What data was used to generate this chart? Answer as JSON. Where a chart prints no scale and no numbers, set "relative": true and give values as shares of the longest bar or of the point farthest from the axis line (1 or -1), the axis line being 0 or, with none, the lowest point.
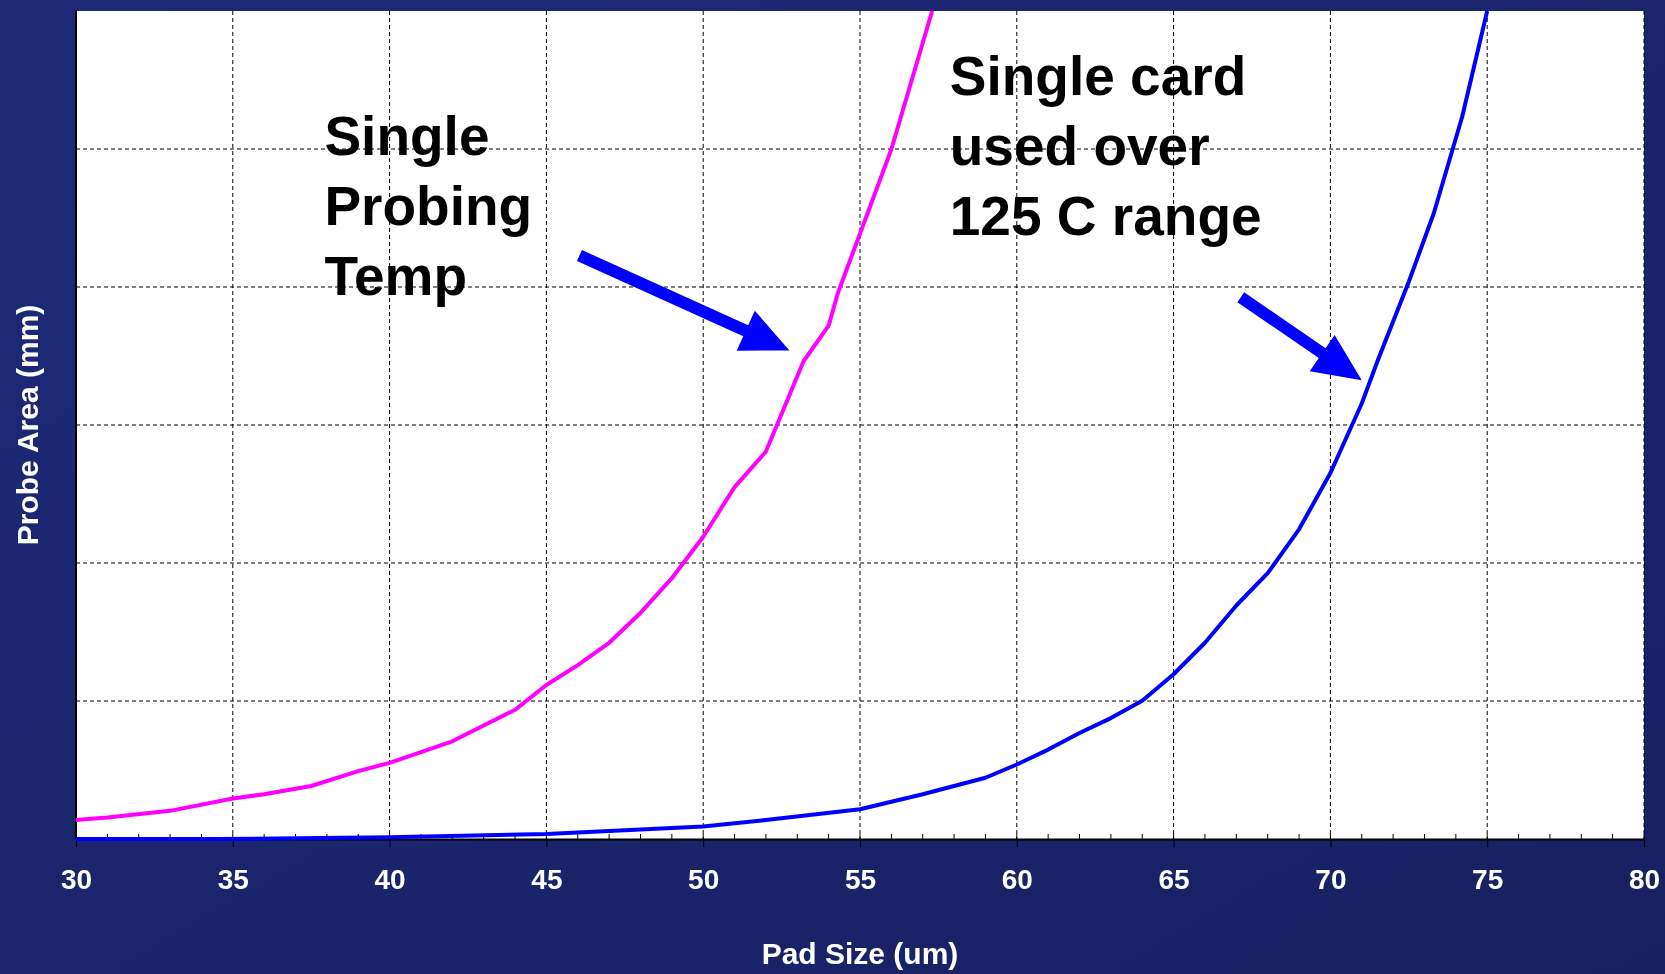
{
  "chart_data": {
    "type": "line",
    "relative": true,
    "xlabel": "Pad Size (um)",
    "ylabel": "Probe Area (mm)",
    "xlim": [
      30,
      80
    ],
    "xticks": [
      30,
      35,
      40,
      45,
      50,
      55,
      60,
      65,
      70,
      75,
      80
    ],
    "tick_labels": "x",
    "grid": true,
    "marker": "none",
    "line_style": "solid",
    "series": [
      {
        "color": "#ff00ff",
        "x": [
          30,
          31,
          33,
          35,
          36,
          37.5,
          39,
          40,
          42,
          44,
          45,
          46,
          47,
          48,
          49,
          50,
          51,
          52,
          53.2,
          54,
          54.3,
          55,
          56,
          57.3
        ],
        "values": [
          0.023,
          0.026,
          0.034,
          0.049,
          0.054,
          0.064,
          0.082,
          0.092,
          0.118,
          0.156,
          0.186,
          0.21,
          0.237,
          0.273,
          0.315,
          0.365,
          0.425,
          0.468,
          0.577,
          0.62,
          0.66,
          0.731,
          0.833,
          1.0
        ]
      },
      {
        "color": "#0000ff",
        "x": [
          30,
          34.5,
          40,
          45,
          50,
          52,
          55,
          57,
          59,
          60,
          61,
          62,
          63,
          64,
          65,
          66,
          67,
          68,
          69,
          70,
          71,
          71.5,
          72.5,
          73.3,
          74.2,
          75
        ],
        "values": [
          0,
          0,
          0.002,
          0.006,
          0.015,
          0.023,
          0.036,
          0.054,
          0.074,
          0.09,
          0.108,
          0.128,
          0.146,
          0.167,
          0.199,
          0.237,
          0.282,
          0.321,
          0.374,
          0.442,
          0.526,
          0.577,
          0.673,
          0.756,
          0.872,
          1.0
        ]
      }
    ],
    "annotations": [
      "Single\nProbing\nTemp",
      "Single card\nused over\n125 C range"
    ]
  }
}
